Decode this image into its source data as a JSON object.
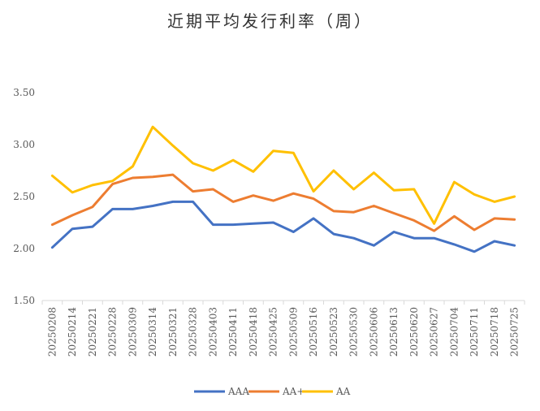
{
  "chart_data": {
    "type": "line",
    "title": "近期平均发行利率（周）",
    "categories": [
      "20250208",
      "20250214",
      "20250221",
      "20250228",
      "20250309",
      "20250314",
      "20250321",
      "20250328",
      "20250403",
      "20250411",
      "20250418",
      "20250425",
      "20250509",
      "20250516",
      "20250523",
      "20250530",
      "20250606",
      "20250613",
      "20250620",
      "20250627",
      "20250704",
      "20250711",
      "20250718",
      "20250725"
    ],
    "ylim": [
      1.5,
      3.5
    ],
    "yticks": [
      "1.50",
      "2.00",
      "2.50",
      "3.00",
      "3.50"
    ],
    "grid": false,
    "legend": "bottom",
    "series": [
      {
        "name": "AAA",
        "color": "#4472C4",
        "values": [
          2.01,
          2.19,
          2.21,
          2.38,
          2.38,
          2.41,
          2.45,
          2.45,
          2.23,
          2.23,
          2.24,
          2.25,
          2.16,
          2.29,
          2.14,
          2.1,
          2.03,
          2.16,
          2.1,
          2.1,
          2.04,
          1.97,
          2.07,
          2.03
        ]
      },
      {
        "name": "AA+",
        "color": "#ED7D31",
        "values": [
          2.23,
          2.32,
          2.4,
          2.62,
          2.68,
          2.69,
          2.71,
          2.55,
          2.57,
          2.45,
          2.51,
          2.46,
          2.53,
          2.48,
          2.36,
          2.35,
          2.41,
          2.34,
          2.27,
          2.17,
          2.31,
          2.18,
          2.29,
          2.28
        ]
      },
      {
        "name": "AA",
        "color": "#FFC000",
        "values": [
          2.7,
          2.54,
          2.61,
          2.65,
          2.79,
          3.17,
          2.99,
          2.82,
          2.75,
          2.85,
          2.74,
          2.94,
          2.92,
          2.55,
          2.75,
          2.57,
          2.73,
          2.56,
          2.57,
          2.24,
          2.64,
          2.52,
          2.45,
          2.5
        ]
      }
    ]
  }
}
